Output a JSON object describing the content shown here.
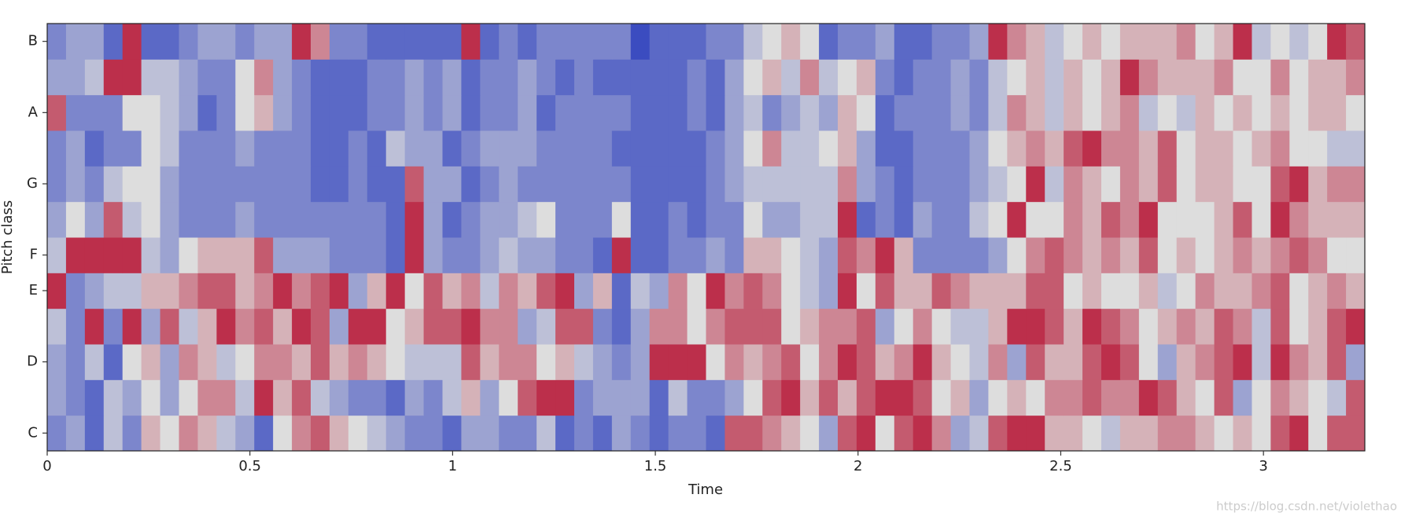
{
  "chart_data": {
    "type": "heatmap",
    "x_label": "Time",
    "y_label": "Pitch class",
    "watermark": "https://blog.csdn.net/violethao",
    "xlim": [
      0,
      3.25
    ],
    "xticks": [
      0,
      0.5,
      1,
      1.5,
      2,
      2.5,
      3
    ],
    "y_categories": [
      "C",
      null,
      "D",
      null,
      "E",
      "F",
      null,
      "G",
      null,
      "A",
      null,
      "B"
    ],
    "clim": [
      0,
      1
    ],
    "colormap": [
      "#3b4cc0",
      "#dddddd",
      "#b40426"
    ],
    "values": [
      [
        0.2,
        0.3,
        0.1,
        0.4,
        0.2,
        0.6,
        0.5,
        0.7,
        0.6,
        0.4,
        0.3,
        0.1,
        0.5,
        0.7,
        0.8,
        0.6,
        0.5,
        0.4,
        0.3,
        0.2,
        0.2,
        0.1,
        0.3,
        0.3,
        0.2,
        0.2,
        0.4,
        0.1,
        0.2,
        0.1,
        0.3,
        0.2,
        0.1,
        0.2,
        0.2,
        0.1,
        0.8,
        0.8,
        0.7,
        0.6,
        0.5,
        0.3,
        0.8,
        0.9,
        0.5,
        0.8,
        0.9,
        0.7,
        0.3,
        0.4,
        0.8,
        0.9,
        0.9,
        0.6,
        0.6,
        0.5,
        0.4,
        0.6,
        0.6,
        0.7,
        0.7,
        0.6,
        0.5,
        0.6,
        0.5,
        0.8,
        0.9,
        0.5,
        0.8,
        0.8
      ],
      [
        0.3,
        0.2,
        0.1,
        0.4,
        0.3,
        0.5,
        0.3,
        0.5,
        0.7,
        0.7,
        0.4,
        0.9,
        0.6,
        0.8,
        0.4,
        0.3,
        0.2,
        0.2,
        0.1,
        0.3,
        0.2,
        0.4,
        0.6,
        0.3,
        0.5,
        0.8,
        0.9,
        0.9,
        0.2,
        0.3,
        0.3,
        0.3,
        0.1,
        0.4,
        0.2,
        0.2,
        0.3,
        0.5,
        0.8,
        0.9,
        0.6,
        0.8,
        0.6,
        0.8,
        0.9,
        0.9,
        0.8,
        0.5,
        0.6,
        0.3,
        0.5,
        0.6,
        0.5,
        0.7,
        0.7,
        0.8,
        0.7,
        0.7,
        0.9,
        0.8,
        0.6,
        0.5,
        0.8,
        0.3,
        0.5,
        0.7,
        0.6,
        0.5,
        0.4,
        0.8
      ],
      [
        0.3,
        0.2,
        0.4,
        0.1,
        0.5,
        0.6,
        0.3,
        0.7,
        0.6,
        0.4,
        0.5,
        0.7,
        0.7,
        0.6,
        0.8,
        0.6,
        0.7,
        0.6,
        0.5,
        0.4,
        0.4,
        0.4,
        0.8,
        0.6,
        0.7,
        0.7,
        0.5,
        0.6,
        0.4,
        0.3,
        0.2,
        0.3,
        0.9,
        0.9,
        0.9,
        0.5,
        0.7,
        0.6,
        0.7,
        0.8,
        0.5,
        0.7,
        0.9,
        0.8,
        0.6,
        0.7,
        0.9,
        0.6,
        0.5,
        0.4,
        0.7,
        0.3,
        0.8,
        0.6,
        0.6,
        0.8,
        0.9,
        0.8,
        0.5,
        0.3,
        0.6,
        0.7,
        0.8,
        0.9,
        0.4,
        0.9,
        0.7,
        0.6,
        0.8,
        0.3
      ],
      [
        0.4,
        0.2,
        0.9,
        0.2,
        0.9,
        0.3,
        0.8,
        0.4,
        0.6,
        0.9,
        0.7,
        0.8,
        0.6,
        0.9,
        0.8,
        0.3,
        0.9,
        0.9,
        0.5,
        0.6,
        0.8,
        0.8,
        0.9,
        0.7,
        0.7,
        0.3,
        0.4,
        0.8,
        0.8,
        0.2,
        0.1,
        0.3,
        0.7,
        0.7,
        0.5,
        0.7,
        0.8,
        0.8,
        0.8,
        0.5,
        0.6,
        0.7,
        0.7,
        0.8,
        0.3,
        0.5,
        0.7,
        0.5,
        0.4,
        0.4,
        0.6,
        0.9,
        0.9,
        0.8,
        0.6,
        0.9,
        0.8,
        0.7,
        0.5,
        0.6,
        0.7,
        0.6,
        0.8,
        0.7,
        0.4,
        0.8,
        0.5,
        0.6,
        0.8,
        0.9
      ],
      [
        0.9,
        0.2,
        0.3,
        0.4,
        0.4,
        0.6,
        0.6,
        0.7,
        0.8,
        0.8,
        0.6,
        0.7,
        0.9,
        0.7,
        0.8,
        0.9,
        0.3,
        0.6,
        0.9,
        0.5,
        0.8,
        0.6,
        0.7,
        0.4,
        0.7,
        0.6,
        0.8,
        0.9,
        0.3,
        0.6,
        0.1,
        0.4,
        0.3,
        0.7,
        0.5,
        0.9,
        0.7,
        0.8,
        0.7,
        0.5,
        0.4,
        0.3,
        0.9,
        0.5,
        0.8,
        0.6,
        0.6,
        0.8,
        0.7,
        0.6,
        0.6,
        0.6,
        0.8,
        0.8,
        0.5,
        0.6,
        0.5,
        0.5,
        0.6,
        0.4,
        0.5,
        0.7,
        0.6,
        0.6,
        0.7,
        0.8,
        0.5,
        0.6,
        0.7,
        0.6
      ],
      [
        0.4,
        0.9,
        0.9,
        0.9,
        0.9,
        0.4,
        0.3,
        0.5,
        0.6,
        0.6,
        0.6,
        0.8,
        0.3,
        0.3,
        0.3,
        0.2,
        0.2,
        0.2,
        0.1,
        0.9,
        0.3,
        0.2,
        0.2,
        0.3,
        0.4,
        0.3,
        0.3,
        0.2,
        0.2,
        0.1,
        0.9,
        0.1,
        0.1,
        0.2,
        0.2,
        0.3,
        0.2,
        0.6,
        0.6,
        0.5,
        0.4,
        0.3,
        0.8,
        0.7,
        0.9,
        0.6,
        0.2,
        0.2,
        0.2,
        0.2,
        0.3,
        0.5,
        0.7,
        0.8,
        0.7,
        0.6,
        0.7,
        0.6,
        0.8,
        0.5,
        0.6,
        0.5,
        0.6,
        0.7,
        0.6,
        0.7,
        0.8,
        0.7,
        0.5,
        0.5
      ],
      [
        0.3,
        0.5,
        0.3,
        0.8,
        0.4,
        0.5,
        0.3,
        0.2,
        0.2,
        0.2,
        0.3,
        0.2,
        0.2,
        0.2,
        0.2,
        0.2,
        0.2,
        0.2,
        0.1,
        0.9,
        0.3,
        0.1,
        0.2,
        0.3,
        0.3,
        0.4,
        0.5,
        0.2,
        0.2,
        0.2,
        0.5,
        0.1,
        0.1,
        0.2,
        0.1,
        0.2,
        0.2,
        0.5,
        0.3,
        0.3,
        0.4,
        0.4,
        0.9,
        0.1,
        0.2,
        0.1,
        0.3,
        0.2,
        0.2,
        0.4,
        0.5,
        0.9,
        0.5,
        0.5,
        0.7,
        0.6,
        0.8,
        0.7,
        0.9,
        0.5,
        0.5,
        0.5,
        0.6,
        0.8,
        0.5,
        0.9,
        0.7,
        0.6,
        0.6,
        0.6
      ],
      [
        0.2,
        0.3,
        0.2,
        0.4,
        0.5,
        0.5,
        0.3,
        0.2,
        0.2,
        0.2,
        0.2,
        0.2,
        0.2,
        0.2,
        0.1,
        0.1,
        0.2,
        0.1,
        0.1,
        0.8,
        0.3,
        0.3,
        0.1,
        0.2,
        0.3,
        0.2,
        0.2,
        0.2,
        0.2,
        0.2,
        0.2,
        0.1,
        0.1,
        0.1,
        0.1,
        0.2,
        0.3,
        0.4,
        0.4,
        0.4,
        0.4,
        0.4,
        0.7,
        0.3,
        0.2,
        0.1,
        0.2,
        0.2,
        0.2,
        0.3,
        0.4,
        0.5,
        0.9,
        0.4,
        0.7,
        0.6,
        0.5,
        0.7,
        0.6,
        0.8,
        0.5,
        0.6,
        0.6,
        0.5,
        0.5,
        0.8,
        0.9,
        0.6,
        0.7,
        0.7
      ],
      [
        0.2,
        0.3,
        0.1,
        0.2,
        0.2,
        0.5,
        0.4,
        0.2,
        0.2,
        0.2,
        0.3,
        0.2,
        0.2,
        0.2,
        0.1,
        0.1,
        0.2,
        0.1,
        0.4,
        0.3,
        0.3,
        0.1,
        0.2,
        0.3,
        0.3,
        0.3,
        0.2,
        0.2,
        0.2,
        0.2,
        0.1,
        0.1,
        0.1,
        0.1,
        0.1,
        0.2,
        0.3,
        0.5,
        0.7,
        0.4,
        0.4,
        0.5,
        0.6,
        0.3,
        0.1,
        0.1,
        0.2,
        0.2,
        0.2,
        0.3,
        0.5,
        0.6,
        0.7,
        0.6,
        0.8,
        0.9,
        0.7,
        0.7,
        0.6,
        0.8,
        0.5,
        0.6,
        0.6,
        0.5,
        0.6,
        0.7,
        0.5,
        0.5,
        0.4,
        0.4
      ],
      [
        0.8,
        0.2,
        0.2,
        0.2,
        0.5,
        0.5,
        0.4,
        0.3,
        0.1,
        0.2,
        0.5,
        0.6,
        0.3,
        0.2,
        0.1,
        0.1,
        0.1,
        0.2,
        0.2,
        0.3,
        0.2,
        0.3,
        0.1,
        0.2,
        0.2,
        0.3,
        0.1,
        0.2,
        0.2,
        0.2,
        0.2,
        0.1,
        0.1,
        0.1,
        0.2,
        0.1,
        0.3,
        0.4,
        0.2,
        0.3,
        0.4,
        0.3,
        0.6,
        0.5,
        0.1,
        0.2,
        0.2,
        0.2,
        0.3,
        0.2,
        0.4,
        0.7,
        0.6,
        0.4,
        0.6,
        0.5,
        0.6,
        0.7,
        0.4,
        0.5,
        0.4,
        0.6,
        0.5,
        0.6,
        0.5,
        0.6,
        0.5,
        0.6,
        0.6,
        0.5
      ],
      [
        0.3,
        0.3,
        0.4,
        0.9,
        0.9,
        0.4,
        0.4,
        0.3,
        0.2,
        0.2,
        0.5,
        0.7,
        0.3,
        0.2,
        0.1,
        0.1,
        0.1,
        0.2,
        0.2,
        0.3,
        0.2,
        0.3,
        0.1,
        0.2,
        0.2,
        0.3,
        0.2,
        0.1,
        0.2,
        0.1,
        0.1,
        0.1,
        0.1,
        0.1,
        0.2,
        0.1,
        0.3,
        0.5,
        0.6,
        0.4,
        0.7,
        0.4,
        0.5,
        0.6,
        0.2,
        0.1,
        0.2,
        0.2,
        0.3,
        0.2,
        0.4,
        0.5,
        0.6,
        0.4,
        0.6,
        0.5,
        0.6,
        0.9,
        0.7,
        0.6,
        0.6,
        0.6,
        0.7,
        0.5,
        0.5,
        0.7,
        0.5,
        0.6,
        0.6,
        0.7
      ],
      [
        0.2,
        0.3,
        0.3,
        0.1,
        0.9,
        0.1,
        0.1,
        0.2,
        0.3,
        0.3,
        0.2,
        0.3,
        0.3,
        0.9,
        0.7,
        0.2,
        0.2,
        0.1,
        0.1,
        0.1,
        0.1,
        0.1,
        0.9,
        0.1,
        0.2,
        0.1,
        0.2,
        0.2,
        0.2,
        0.2,
        0.2,
        0,
        0.1,
        0.1,
        0.1,
        0.2,
        0.2,
        0.4,
        0.5,
        0.6,
        0.5,
        0.1,
        0.2,
        0.2,
        0.3,
        0.1,
        0.1,
        0.2,
        0.2,
        0.3,
        0.9,
        0.7,
        0.6,
        0.4,
        0.5,
        0.6,
        0.5,
        0.6,
        0.6,
        0.6,
        0.7,
        0.5,
        0.6,
        0.9,
        0.4,
        0.5,
        0.4,
        0.5,
        0.9,
        0.8
      ]
    ]
  }
}
